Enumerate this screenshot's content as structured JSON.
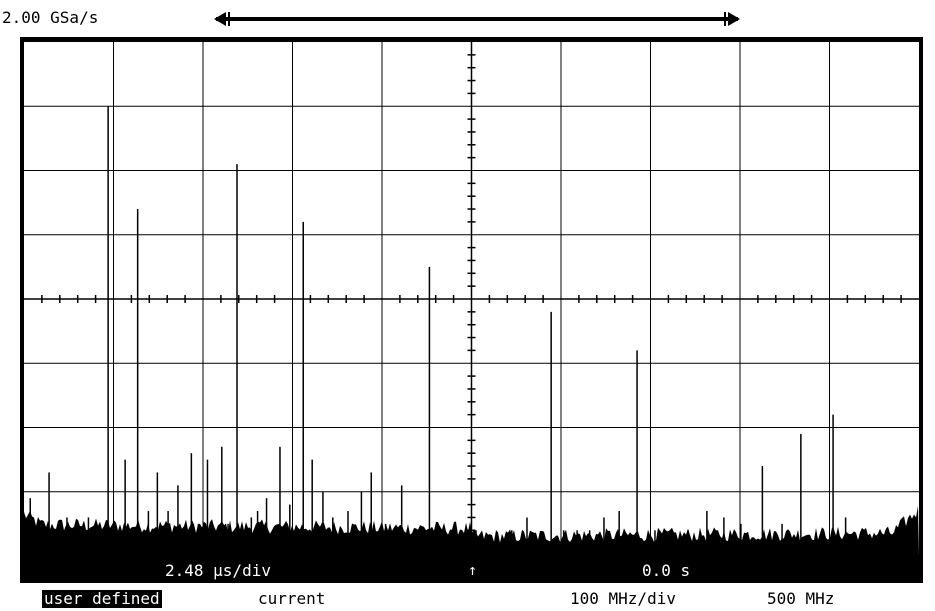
{
  "header": {
    "sample_rate": "2.00 GSa/s"
  },
  "status": {
    "timebase": "2.48 µs/div",
    "trigger_icon": "up-arrow-icon",
    "trigger_glyph": "↑",
    "delay": "0.0 s"
  },
  "footer": {
    "mode_label": "user defined",
    "current_label": "current",
    "freq_per_div": "100 MHz/div",
    "center_freq": "500 MHz"
  },
  "colors": {
    "trace": "#000000",
    "background": "#ffffff",
    "grid": "#000000"
  },
  "chart_data": {
    "type": "line",
    "xlabel": "",
    "ylabel": "",
    "x_units": "MHz",
    "xlim": [
      0,
      1000
    ],
    "ylim": [
      0,
      8
    ],
    "y_units": "divisions",
    "grid": true,
    "series": [
      {
        "x": [
          7,
          28,
          48,
          72,
          94,
          113,
          127,
          139,
          149,
          155,
          161,
          172,
          187,
          195,
          205,
          213,
          221,
          228,
          238,
          254,
          261,
          271,
          286,
          297,
          312,
          322,
          334,
          345,
          362,
          377,
          388,
          404,
          422,
          438,
          453,
          476,
          505,
          527,
          545,
          562,
          589,
          603,
          618,
          632,
          648,
          665,
          685,
          705,
          723,
          742,
          763,
          782,
          801,
          825,
          847,
          868,
          885,
          904,
          918
        ],
        "y": [
          0.9,
          1.3,
          0.6,
          0.6,
          7.0,
          1.5,
          5.4,
          0.7,
          1.3,
          0.4,
          0.7,
          1.1,
          1.6,
          0.5,
          1.5,
          0.3,
          1.7,
          0.5,
          6.1,
          0.6,
          0.7,
          0.9,
          1.7,
          0.8,
          5.2,
          1.5,
          1.0,
          0.6,
          0.7,
          1.0,
          1.3,
          0.5,
          1.1,
          0.4,
          4.5,
          0.3,
          0.4,
          0.3,
          0.4,
          0.6,
          3.8,
          0.4,
          0.4,
          0.4,
          0.6,
          0.7,
          3.2,
          0.4,
          0.3,
          0.4,
          0.7,
          0.6,
          0.5,
          1.4,
          0.5,
          1.9,
          0.3,
          2.2,
          0.6
        ]
      }
    ]
  }
}
